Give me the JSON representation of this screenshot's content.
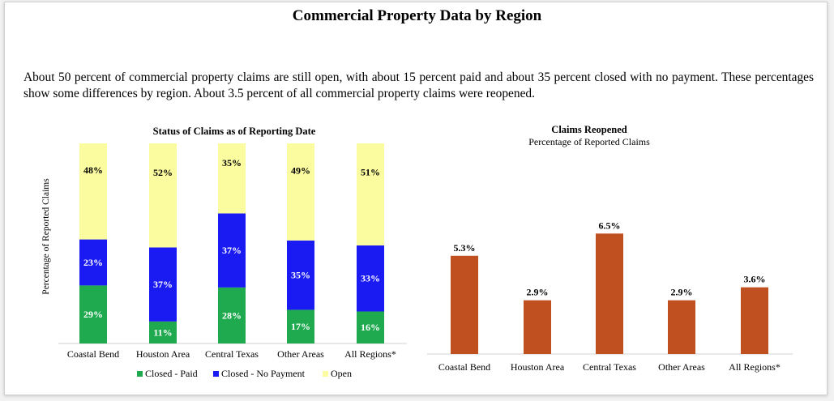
{
  "page": {
    "title": "Commercial Property Data by Region",
    "description": "About 50 percent of commercial property claims are still open, with about 15 percent paid and about 35 percent closed with no payment. These percentages show some differences by region. About 3.5 percent of all commercial property claims were reopened."
  },
  "chart_data": [
    {
      "type": "bar",
      "stacked": true,
      "title": "Status of Claims as of Reporting Date",
      "ylabel": "Percentage of Reported Claims",
      "ylim": [
        0,
        100
      ],
      "categories": [
        "Coastal Bend",
        "Houston Area",
        "Central Texas",
        "Other Areas",
        "All Regions*"
      ],
      "series": [
        {
          "name": "Closed - Paid",
          "color": "#1faa4f",
          "values": [
            29,
            11,
            28,
            17,
            16
          ],
          "labels": [
            "29%",
            "11%",
            "28%",
            "17%",
            "16%"
          ]
        },
        {
          "name": "Closed - No Payment",
          "color": "#1a1af2",
          "values": [
            23,
            37,
            37,
            35,
            33
          ],
          "labels": [
            "23%",
            "37%",
            "37%",
            "35%",
            "33%"
          ]
        },
        {
          "name": "Open",
          "color": "#fbfba0",
          "values": [
            48,
            52,
            35,
            49,
            51
          ],
          "labels": [
            "48%",
            "52%",
            "35%",
            "49%",
            "51%"
          ]
        }
      ],
      "legend": "bottom",
      "grid": false
    },
    {
      "type": "bar",
      "title": "Claims Reopened",
      "subtitle": "Percentage of Reported Claims",
      "categories": [
        "Coastal Bend",
        "Houston Area",
        "Central Texas",
        "Other Areas",
        "All Regions*"
      ],
      "values": [
        5.3,
        2.9,
        6.5,
        2.9,
        3.6
      ],
      "labels": [
        "5.3%",
        "2.9%",
        "6.5%",
        "2.9%",
        "3.6%"
      ],
      "color": "#c0501f",
      "ylim": [
        0,
        8
      ],
      "grid": false
    }
  ]
}
